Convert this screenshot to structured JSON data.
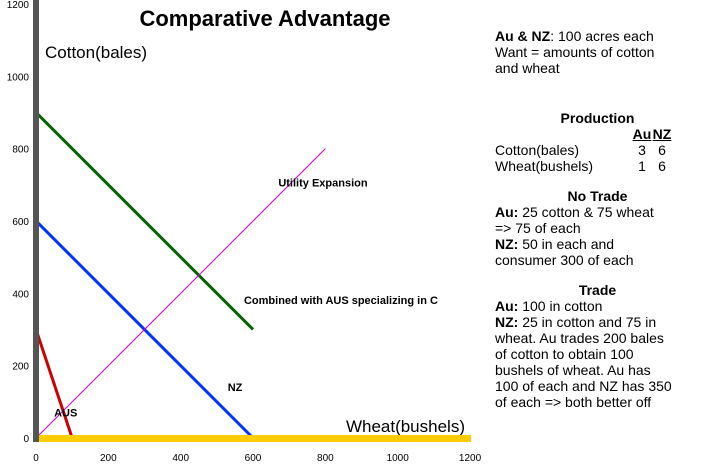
{
  "chart_data": {
    "type": "line",
    "title": "Comparative Advantage",
    "xlabel": "Wheat(bushels)",
    "ylabel": "Cotton(bales)",
    "xlim": [
      0,
      1200
    ],
    "ylim": [
      0,
      1200
    ],
    "xticks": [
      0,
      200,
      400,
      600,
      800,
      1000,
      1200
    ],
    "yticks": [
      0,
      200,
      400,
      600,
      800,
      1000,
      1200
    ],
    "grid": false,
    "series": [
      {
        "name": "AUS",
        "color": "#cc0000",
        "points": [
          [
            0,
            300
          ],
          [
            100,
            0
          ]
        ]
      },
      {
        "name": "NZ",
        "color": "#0033ff",
        "points": [
          [
            0,
            600
          ],
          [
            600,
            0
          ]
        ]
      },
      {
        "name": "Combined with AUS  specializing in C",
        "color": "#006600",
        "points": [
          [
            0,
            900
          ],
          [
            600,
            300
          ]
        ]
      },
      {
        "name": "Utility Expansion",
        "color": "#cc00cc",
        "points": [
          [
            0,
            0
          ],
          [
            800,
            800
          ]
        ]
      }
    ],
    "series_labels": [
      {
        "text": "AUS",
        "x": 50,
        "y": 60
      },
      {
        "text": "NZ",
        "x": 530,
        "y": 130
      },
      {
        "text": "Combined with AUS  specializing in C",
        "x": 575,
        "y": 370
      },
      {
        "text": "Utility Expansion",
        "x": 670,
        "y": 695
      }
    ]
  },
  "panel": {
    "intro_bold": "Au & NZ",
    "intro_rest": ": 100 acres each",
    "want_line1": "Want = amounts of cotton",
    "want_line2": "and wheat",
    "production": {
      "title": "Production",
      "col_au": "Au",
      "col_nz": "NZ",
      "rows": [
        {
          "label": "Cotton(bales)",
          "au": "3",
          "nz": "6"
        },
        {
          "label": "Wheat(bushels)",
          "au": "1",
          "nz": "6"
        }
      ]
    },
    "no_trade": {
      "title": "No Trade",
      "au_label": "Au:",
      "au_text_1": " 25 cotton & 75 wheat",
      "au_text_2": "=> 75 of each",
      "nz_label": "NZ:",
      "nz_text_1": "  50 in each and",
      "nz_text_2": "consumer 300 of each"
    },
    "trade": {
      "title": "Trade",
      "au_label": "Au:",
      "au_text": " 100 in cotton",
      "nz_label": "NZ:",
      "nz_line1": "  25 in cotton and 75 in",
      "nz_line2": "wheat. Au trades 200 bales",
      "nz_line3": "of cotton to obtain 100",
      "nz_line4": "bushels of wheat.  Au has",
      "nz_line5": "100 of each and NZ has 350",
      "nz_line6": "of each => both better off"
    }
  }
}
